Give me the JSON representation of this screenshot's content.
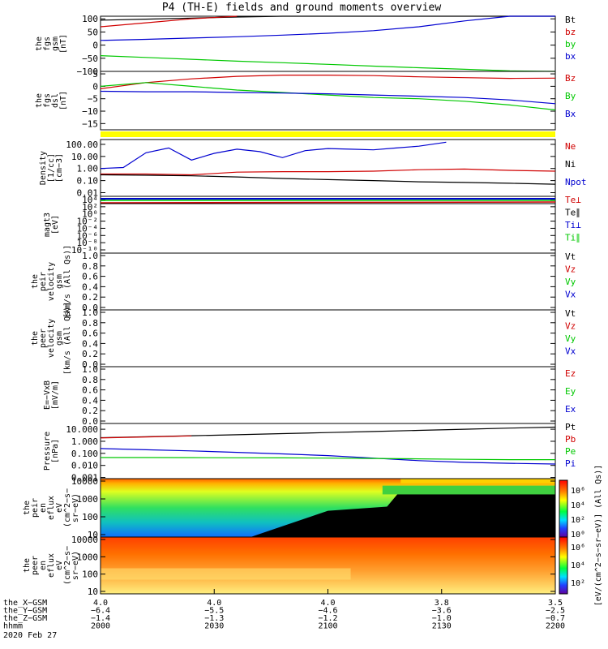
{
  "title": "P4 (TH-E) fields and ground moments overview",
  "colors": {
    "black": "#000000",
    "red": "#d00000",
    "green": "#00c800",
    "blue": "#0000d0",
    "yellow": "#ffff00"
  },
  "chart_data": [
    {
      "type": "line",
      "panel": "fgs-gsm",
      "ylabel": [
        "the",
        "fgs",
        "gsm",
        "[nT]"
      ],
      "yticks": [
        "100",
        "50",
        "0",
        "−50",
        "−100"
      ],
      "ylim": [
        -100,
        110
      ],
      "legend": [
        {
          "label": "Bt",
          "color": "#000000"
        },
        {
          "label": "bz",
          "color": "#d00000"
        },
        {
          "label": "by",
          "color": "#00c800"
        },
        {
          "label": "bx",
          "color": "#0000d0"
        }
      ],
      "series": [
        {
          "name": "Bt",
          "color": "#000000",
          "x": [
            0,
            0.1,
            0.2,
            0.3,
            0.4,
            0.5,
            0.6,
            0.7,
            0.8,
            0.9,
            1.0
          ],
          "y": [
            95,
            99,
            103,
            107,
            111,
            115,
            119,
            123,
            127,
            131,
            135
          ]
        },
        {
          "name": "bz",
          "color": "#d00000",
          "x": [
            0,
            0.1,
            0.2,
            0.3
          ],
          "y": [
            70,
            85,
            100,
            118
          ]
        },
        {
          "name": "bx",
          "color": "#0000d0",
          "x": [
            0,
            0.1,
            0.2,
            0.3,
            0.4,
            0.5,
            0.6,
            0.7,
            0.8,
            0.9,
            1.0
          ],
          "y": [
            18,
            22,
            27,
            32,
            38,
            45,
            55,
            70,
            92,
            120,
            150
          ]
        },
        {
          "name": "by",
          "color": "#00c800",
          "x": [
            0,
            0.1,
            0.2,
            0.3,
            0.4,
            0.5,
            0.6,
            0.7,
            0.8,
            0.9,
            1.0
          ],
          "y": [
            -40,
            -47,
            -54,
            -61,
            -67,
            -73,
            -80,
            -86,
            -92,
            -98,
            -104
          ]
        }
      ]
    },
    {
      "type": "line",
      "panel": "fgs-dsl",
      "ylabel": [
        "the",
        "fgs",
        "dsl",
        "[nT]"
      ],
      "yticks": [
        "5",
        "0",
        "−5",
        "−10",
        "−15"
      ],
      "ylim": [
        -17.5,
        6
      ],
      "legend": [
        {
          "label": "Bz",
          "color": "#d00000"
        },
        {
          "label": "By",
          "color": "#00c800"
        },
        {
          "label": "Bx",
          "color": "#0000d0"
        }
      ],
      "series": [
        {
          "name": "Bz",
          "color": "#d00000",
          "x": [
            0,
            0.1,
            0.2,
            0.3,
            0.4,
            0.5,
            0.6,
            0.7,
            0.8,
            0.9,
            1.0
          ],
          "y": [
            -1,
            1.5,
            3,
            4,
            4.5,
            4.5,
            4.3,
            3.8,
            3.5,
            3.2,
            3.3
          ]
        },
        {
          "name": "By",
          "color": "#00c800",
          "x": [
            0,
            0.1,
            0.2,
            0.3,
            0.4,
            0.5,
            0.6,
            0.7,
            0.8,
            0.9,
            1.0
          ],
          "y": [
            0,
            1.5,
            0,
            -1.5,
            -2.5,
            -3.5,
            -4.5,
            -5,
            -6,
            -7.5,
            -9.5
          ]
        },
        {
          "name": "Bx",
          "color": "#0000d0",
          "x": [
            0,
            0.1,
            0.2,
            0.3,
            0.4,
            0.5,
            0.6,
            0.7,
            0.8,
            0.9,
            1.0
          ],
          "y": [
            -2,
            -2.2,
            -2.2,
            -2.5,
            -2.7,
            -3,
            -3.5,
            -4,
            -4.5,
            -5.5,
            -7
          ]
        }
      ]
    },
    {
      "type": "line",
      "panel": "density",
      "ylabel": [
        "Density",
        "[1/cc]",
        "[cm−3]"
      ],
      "yticks": [
        "100.00",
        "10.00",
        "1.00",
        "0.10",
        "0.01"
      ],
      "ylog": true,
      "ylim": [
        0.005,
        250
      ],
      "legend": [
        {
          "label": "Ne",
          "color": "#d00000"
        },
        {
          "label": "Ni",
          "color": "#000000"
        },
        {
          "label": "Npot",
          "color": "#0000d0"
        }
      ],
      "series": [
        {
          "name": "Npot",
          "color": "#0000d0",
          "x": [
            0,
            0.05,
            0.1,
            0.15,
            0.2,
            0.25,
            0.3,
            0.35,
            0.4,
            0.45,
            0.5,
            0.55,
            0.6,
            0.65,
            0.7,
            0.76
          ],
          "y": [
            1,
            1.2,
            20,
            50,
            5,
            18,
            40,
            25,
            8,
            30,
            45,
            40,
            35,
            50,
            70,
            150
          ]
        },
        {
          "name": "Ne",
          "color": "#d00000",
          "x": [
            0,
            0.1,
            0.2,
            0.3,
            0.4,
            0.5,
            0.6,
            0.7,
            0.8,
            0.9,
            1.0
          ],
          "y": [
            0.35,
            0.35,
            0.3,
            0.5,
            0.55,
            0.55,
            0.6,
            0.8,
            0.9,
            0.7,
            0.6
          ]
        },
        {
          "name": "Ni",
          "color": "#000000",
          "x": [
            0,
            0.1,
            0.2,
            0.3,
            0.4,
            0.5,
            0.6,
            0.7,
            0.8,
            0.9,
            1.0
          ],
          "y": [
            0.3,
            0.28,
            0.25,
            0.2,
            0.15,
            0.12,
            0.1,
            0.08,
            0.07,
            0.06,
            0.05
          ]
        }
      ]
    },
    {
      "type": "line",
      "panel": "temperature",
      "ylabel": [
        "magt3",
        "[eV]"
      ],
      "yticks": [
        "10⁴",
        "10²",
        "10⁰",
        "10⁻²",
        "10⁻⁴",
        "10⁻⁶",
        "10⁻⁸",
        "10⁻¹⁰"
      ],
      "legend": [
        {
          "label": "Te⊥",
          "color": "#d00000"
        },
        {
          "label": "Te∥",
          "color": "#000000"
        },
        {
          "label": "Ti⊥",
          "color": "#0000d0"
        },
        {
          "label": "Ti∥",
          "color": "#00c800"
        }
      ]
    },
    {
      "type": "line",
      "panel": "peir-velocity",
      "ylabel": [
        "the",
        "peir",
        "velocity",
        "gsm",
        "[km/s (All Qs)]"
      ],
      "yticks": [
        "1.0",
        "0.8",
        "0.6",
        "0.4",
        "0.2",
        "0.0"
      ],
      "ylim": [
        0,
        1
      ],
      "legend": [
        {
          "label": "Vt",
          "color": "#000000"
        },
        {
          "label": "Vz",
          "color": "#d00000"
        },
        {
          "label": "Vy",
          "color": "#00c800"
        },
        {
          "label": "Vx",
          "color": "#0000d0"
        }
      ]
    },
    {
      "type": "line",
      "panel": "peer-velocity",
      "ylabel": [
        "the",
        "peer",
        "velocity",
        "gsm",
        "[km/s (All Qs)]"
      ],
      "yticks": [
        "1.0",
        "0.8",
        "0.6",
        "0.4",
        "0.2",
        "0.0"
      ],
      "ylim": [
        0,
        1
      ],
      "legend": [
        {
          "label": "Vt",
          "color": "#000000"
        },
        {
          "label": "Vz",
          "color": "#d00000"
        },
        {
          "label": "Vy",
          "color": "#00c800"
        },
        {
          "label": "Vx",
          "color": "#0000d0"
        }
      ]
    },
    {
      "type": "line",
      "panel": "efield",
      "ylabel": [
        "E=−VxB",
        "[mV/m]"
      ],
      "yticks": [
        "1.0",
        "0.8",
        "0.6",
        "0.4",
        "0.2",
        "0.0"
      ],
      "ylim": [
        0,
        1
      ],
      "legend": [
        {
          "label": "Ez",
          "color": "#d00000"
        },
        {
          "label": "Ey",
          "color": "#00c800"
        },
        {
          "label": "Ex",
          "color": "#0000d0"
        }
      ]
    },
    {
      "type": "line",
      "panel": "pressure",
      "ylabel": [
        "Pressure",
        "[nPa]"
      ],
      "yticks": [
        "10.000",
        "1.000",
        "0.100",
        "0.010",
        "0.001"
      ],
      "ylog": true,
      "ylim": [
        0.0008,
        30
      ],
      "legend": [
        {
          "label": "Pt",
          "color": "#000000"
        },
        {
          "label": "Pb",
          "color": "#d00000"
        },
        {
          "label": "Pe",
          "color": "#00c800"
        },
        {
          "label": "Pi",
          "color": "#0000d0"
        }
      ],
      "series": [
        {
          "name": "Pt",
          "color": "#000000",
          "x": [
            0,
            0.1,
            0.2,
            0.3,
            0.4,
            0.5,
            0.6,
            0.7,
            0.8,
            0.9,
            1.0
          ],
          "y": [
            2,
            2.4,
            2.9,
            3.5,
            4.3,
            5.3,
            6.5,
            8,
            10,
            12.5,
            15
          ]
        },
        {
          "name": "Pb",
          "color": "#d00000",
          "x": [
            0,
            0.1,
            0.2
          ],
          "y": [
            1.9,
            2.3,
            2.8
          ]
        },
        {
          "name": "Pi",
          "color": "#0000d0",
          "x": [
            0,
            0.1,
            0.2,
            0.3,
            0.4,
            0.5,
            0.6,
            0.7,
            0.8,
            0.9,
            1.0
          ],
          "y": [
            0.25,
            0.2,
            0.16,
            0.12,
            0.09,
            0.065,
            0.04,
            0.025,
            0.018,
            0.015,
            0.013
          ]
        },
        {
          "name": "Pe",
          "color": "#00c800",
          "x": [
            0,
            0.1,
            0.2,
            0.3,
            0.4,
            0.5,
            0.6,
            0.7,
            0.8,
            0.9,
            1.0
          ],
          "y": [
            0.045,
            0.045,
            0.044,
            0.043,
            0.042,
            0.04,
            0.038,
            0.035,
            0.032,
            0.03,
            0.03
          ]
        }
      ]
    },
    {
      "type": "heatmap",
      "panel": "peir-en-eflux",
      "ylabel": [
        "the",
        "peir",
        "en",
        "eflux",
        "eV",
        "(cm^2−s−",
        "sr−eV)"
      ],
      "yticks": [
        "10000",
        "1000",
        "100",
        "10"
      ]
    },
    {
      "type": "heatmap",
      "panel": "peer-en-eflux",
      "ylabel": [
        "the",
        "peer",
        "en",
        "eflux",
        "eV",
        "(cm^2−s−",
        "sr−eV)"
      ],
      "yticks": [
        "10000",
        "1000",
        "100",
        "10"
      ]
    }
  ],
  "colorbar": {
    "label": "[eV/(cm^2−s−sr−eV)] (All Qs)]",
    "ticks_upper": [
      "10⁶",
      "10⁴",
      "10²",
      "10⁰"
    ],
    "ticks_lower": [
      "10⁶",
      "10⁴",
      "10²"
    ]
  },
  "xaxis": {
    "ticks": [
      "2000",
      "2030",
      "2100",
      "2130",
      "2200"
    ],
    "rows": [
      {
        "label": "the_X−GSM",
        "values": [
          "4.0",
          "4.0",
          "4.0",
          "3.8",
          "3.5"
        ]
      },
      {
        "label": "the_Y−GSM",
        "values": [
          "−6.4",
          "−5.5",
          "−4.6",
          "−3.6",
          "−2.5"
        ]
      },
      {
        "label": "the_Z−GSM",
        "values": [
          "−1.4",
          "−1.3",
          "−1.2",
          "−1.0",
          "−0.7"
        ]
      },
      {
        "label": "hhmm",
        "values": [
          "2000",
          "2030",
          "2100",
          "2130",
          "2200"
        ]
      }
    ],
    "date": "2020 Feb 27"
  }
}
